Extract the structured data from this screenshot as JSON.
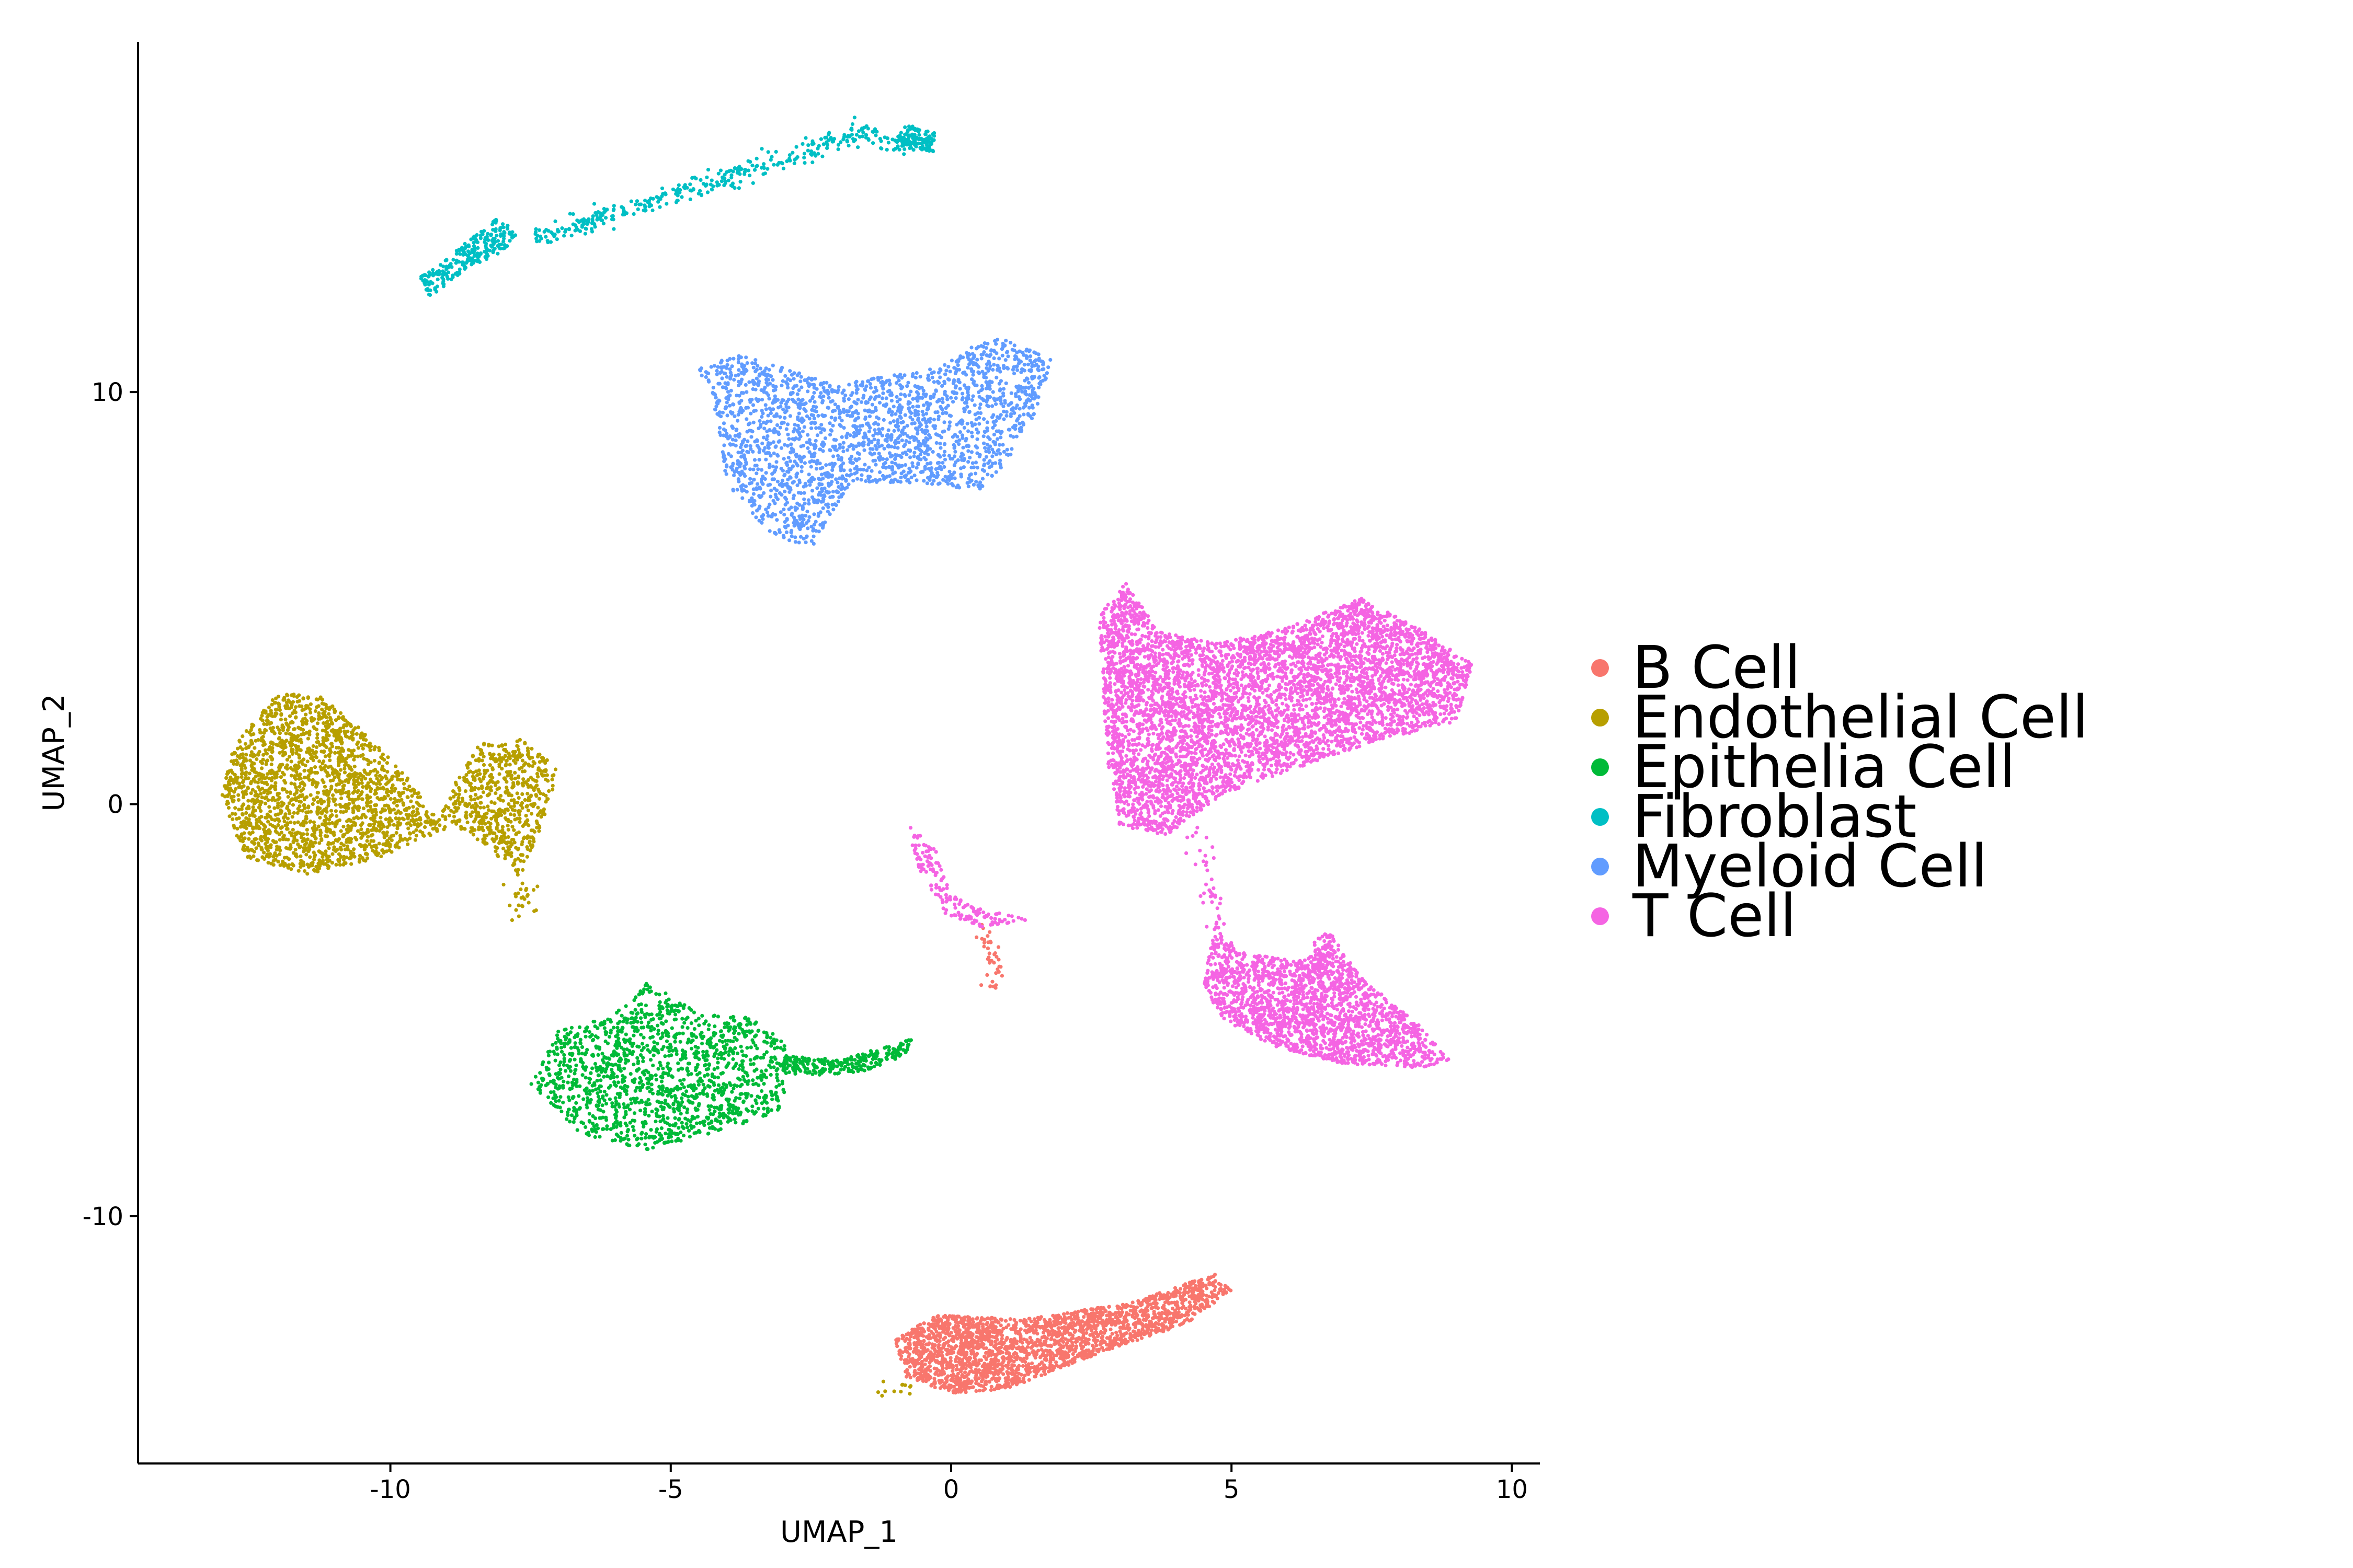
{
  "chart_data": {
    "type": "scatter",
    "title": "",
    "xlabel": "UMAP_1",
    "ylabel": "UMAP_2",
    "xlim": [
      -14.5,
      10.5
    ],
    "ylim": [
      -16.0,
      18.5
    ],
    "x_ticks": [
      -10,
      -5,
      0,
      5,
      10
    ],
    "x_tick_labels": [
      "-10",
      "-5",
      "0",
      "5",
      "10"
    ],
    "y_ticks": [
      -10,
      0,
      10
    ],
    "y_tick_labels": [
      "-10",
      "0",
      "10"
    ],
    "grid": false,
    "legend_position": "right",
    "series": [
      {
        "name": "B Cell",
        "color": "#F8766D",
        "clusters": [
          {
            "shape": "polygon",
            "points": [
              [
                -1.0,
                -13.0
              ],
              [
                -0.3,
                -12.4
              ],
              [
                1.3,
                -12.5
              ],
              [
                3.2,
                -12.1
              ],
              [
                4.7,
                -11.4
              ],
              [
                5.0,
                -11.8
              ],
              [
                4.2,
                -12.6
              ],
              [
                2.5,
                -13.4
              ],
              [
                1.0,
                -14.2
              ],
              [
                0.0,
                -14.3
              ],
              [
                -0.8,
                -13.9
              ]
            ],
            "n": 2300
          },
          {
            "shape": "line",
            "points": [
              [
                0.6,
                -3.1
              ],
              [
                0.8,
                -3.8
              ],
              [
                0.8,
                -4.4
              ]
            ],
            "n": 40
          }
        ]
      },
      {
        "name": "Endothelial Cell",
        "color": "#B79F00",
        "clusters": [
          {
            "shape": "polygon",
            "points": [
              [
                -13.0,
                0.2
              ],
              [
                -12.8,
                1.4
              ],
              [
                -12.0,
                2.7
              ],
              [
                -11.2,
                2.6
              ],
              [
                -10.5,
                1.8
              ],
              [
                -9.6,
                0.5
              ],
              [
                -9.0,
                -0.6
              ],
              [
                -10.2,
                -1.3
              ],
              [
                -11.5,
                -1.7
              ],
              [
                -12.6,
                -1.3
              ]
            ],
            "n": 1900
          },
          {
            "shape": "polygon",
            "points": [
              [
                -9.1,
                -0.3
              ],
              [
                -8.9,
                0.4
              ],
              [
                -8.4,
                1.5
              ],
              [
                -7.6,
                1.6
              ],
              [
                -7.0,
                0.8
              ],
              [
                -7.3,
                -0.5
              ],
              [
                -7.7,
                -1.8
              ],
              [
                -8.2,
                -1.1
              ]
            ],
            "n": 600
          },
          {
            "shape": "line",
            "points": [
              [
                -7.6,
                -1.9
              ],
              [
                -7.7,
                -2.7
              ]
            ],
            "n": 25
          },
          {
            "shape": "line",
            "points": [
              [
                -1.3,
                -14.3
              ],
              [
                -0.8,
                -14.2
              ]
            ],
            "n": 12
          }
        ]
      },
      {
        "name": "Epithelia Cell",
        "color": "#00BA38",
        "clusters": [
          {
            "shape": "polygon",
            "points": [
              [
                -7.5,
                -6.8
              ],
              [
                -7.0,
                -5.5
              ],
              [
                -6.0,
                -5.1
              ],
              [
                -5.4,
                -4.3
              ],
              [
                -4.6,
                -5.0
              ],
              [
                -3.5,
                -5.2
              ],
              [
                -2.9,
                -5.9
              ],
              [
                -3.0,
                -7.4
              ],
              [
                -4.2,
                -8.0
              ],
              [
                -5.5,
                -8.4
              ],
              [
                -6.6,
                -8.0
              ]
            ],
            "n": 1500
          },
          {
            "shape": "polygon",
            "points": [
              [
                -3.0,
                -6.1
              ],
              [
                -2.0,
                -6.2
              ],
              [
                -1.2,
                -5.9
              ],
              [
                -0.7,
                -5.7
              ],
              [
                -0.8,
                -6.1
              ],
              [
                -1.6,
                -6.5
              ],
              [
                -2.5,
                -6.6
              ],
              [
                -3.0,
                -6.5
              ]
            ],
            "n": 250
          }
        ]
      },
      {
        "name": "Fibroblast",
        "color": "#00BFC4",
        "clusters": [
          {
            "shape": "polygon",
            "points": [
              [
                -9.5,
                12.8
              ],
              [
                -9.1,
                13.1
              ],
              [
                -8.6,
                13.7
              ],
              [
                -8.1,
                14.2
              ],
              [
                -7.7,
                13.9
              ],
              [
                -8.0,
                13.4
              ],
              [
                -8.6,
                13.0
              ],
              [
                -9.3,
                12.3
              ]
            ],
            "n": 250
          },
          {
            "shape": "line",
            "points": [
              [
                -7.5,
                13.7
              ],
              [
                -6.0,
                14.3
              ],
              [
                -4.5,
                15.0
              ],
              [
                -2.8,
                15.7
              ],
              [
                -1.7,
                16.3
              ],
              [
                -1.0,
                16.0
              ],
              [
                -0.5,
                16.1
              ]
            ],
            "n": 380
          },
          {
            "shape": "polygon",
            "points": [
              [
                -1.0,
                16.1
              ],
              [
                -0.8,
                16.5
              ],
              [
                -0.3,
                16.3
              ],
              [
                -0.3,
                15.8
              ],
              [
                -0.8,
                15.9
              ]
            ],
            "n": 120
          }
        ]
      },
      {
        "name": "Myeloid Cell",
        "color": "#619CFF",
        "clusters": [
          {
            "shape": "polygon",
            "points": [
              [
                -4.5,
                10.6
              ],
              [
                -3.8,
                10.9
              ],
              [
                -2.0,
                10.2
              ],
              [
                -0.2,
                10.6
              ],
              [
                0.7,
                11.4
              ],
              [
                1.8,
                10.8
              ],
              [
                1.5,
                9.5
              ],
              [
                1.0,
                8.3
              ],
              [
                0.5,
                7.6
              ],
              [
                -0.5,
                7.8
              ],
              [
                -1.8,
                7.8
              ],
              [
                -2.5,
                6.2
              ],
              [
                -3.3,
                6.6
              ],
              [
                -4.0,
                7.8
              ],
              [
                -4.2,
                9.5
              ]
            ],
            "n": 2200
          }
        ]
      },
      {
        "name": "T Cell",
        "color": "#F564E3",
        "clusters": [
          {
            "shape": "polygon",
            "points": [
              [
                2.6,
                4.5
              ],
              [
                3.1,
                5.4
              ],
              [
                3.7,
                4.2
              ],
              [
                4.7,
                3.9
              ],
              [
                6.0,
                4.3
              ],
              [
                7.3,
                5.0
              ],
              [
                8.3,
                4.3
              ],
              [
                9.3,
                3.4
              ],
              [
                9.0,
                2.0
              ],
              [
                7.5,
                1.5
              ],
              [
                6.0,
                0.8
              ],
              [
                4.8,
                0.2
              ],
              [
                3.8,
                -0.8
              ],
              [
                3.0,
                -0.5
              ],
              [
                2.8,
                1.0
              ],
              [
                2.7,
                2.8
              ]
            ],
            "n": 5200
          },
          {
            "shape": "polygon",
            "points": [
              [
                4.7,
                -3.0
              ],
              [
                5.2,
                -3.6
              ],
              [
                6.2,
                -3.8
              ],
              [
                6.7,
                -3.0
              ],
              [
                7.3,
                -4.2
              ],
              [
                8.3,
                -5.3
              ],
              [
                8.9,
                -6.2
              ],
              [
                8.5,
                -6.4
              ],
              [
                7.0,
                -6.3
              ],
              [
                5.8,
                -5.9
              ],
              [
                4.8,
                -5.2
              ],
              [
                4.5,
                -4.3
              ]
            ],
            "n": 2000
          },
          {
            "shape": "line",
            "points": [
              [
                4.4,
                -0.6
              ],
              [
                4.6,
                -2.1
              ],
              [
                4.8,
                -3.0
              ]
            ],
            "n": 40
          },
          {
            "shape": "polygon",
            "points": [
              [
                -0.8,
                -0.4
              ],
              [
                -0.3,
                -1.0
              ],
              [
                0.0,
                -2.2
              ],
              [
                0.4,
                -2.5
              ],
              [
                1.4,
                -2.8
              ],
              [
                0.5,
                -3.0
              ],
              [
                -0.1,
                -2.7
              ],
              [
                -0.6,
                -1.5
              ]
            ],
            "n": 160
          }
        ]
      }
    ]
  }
}
